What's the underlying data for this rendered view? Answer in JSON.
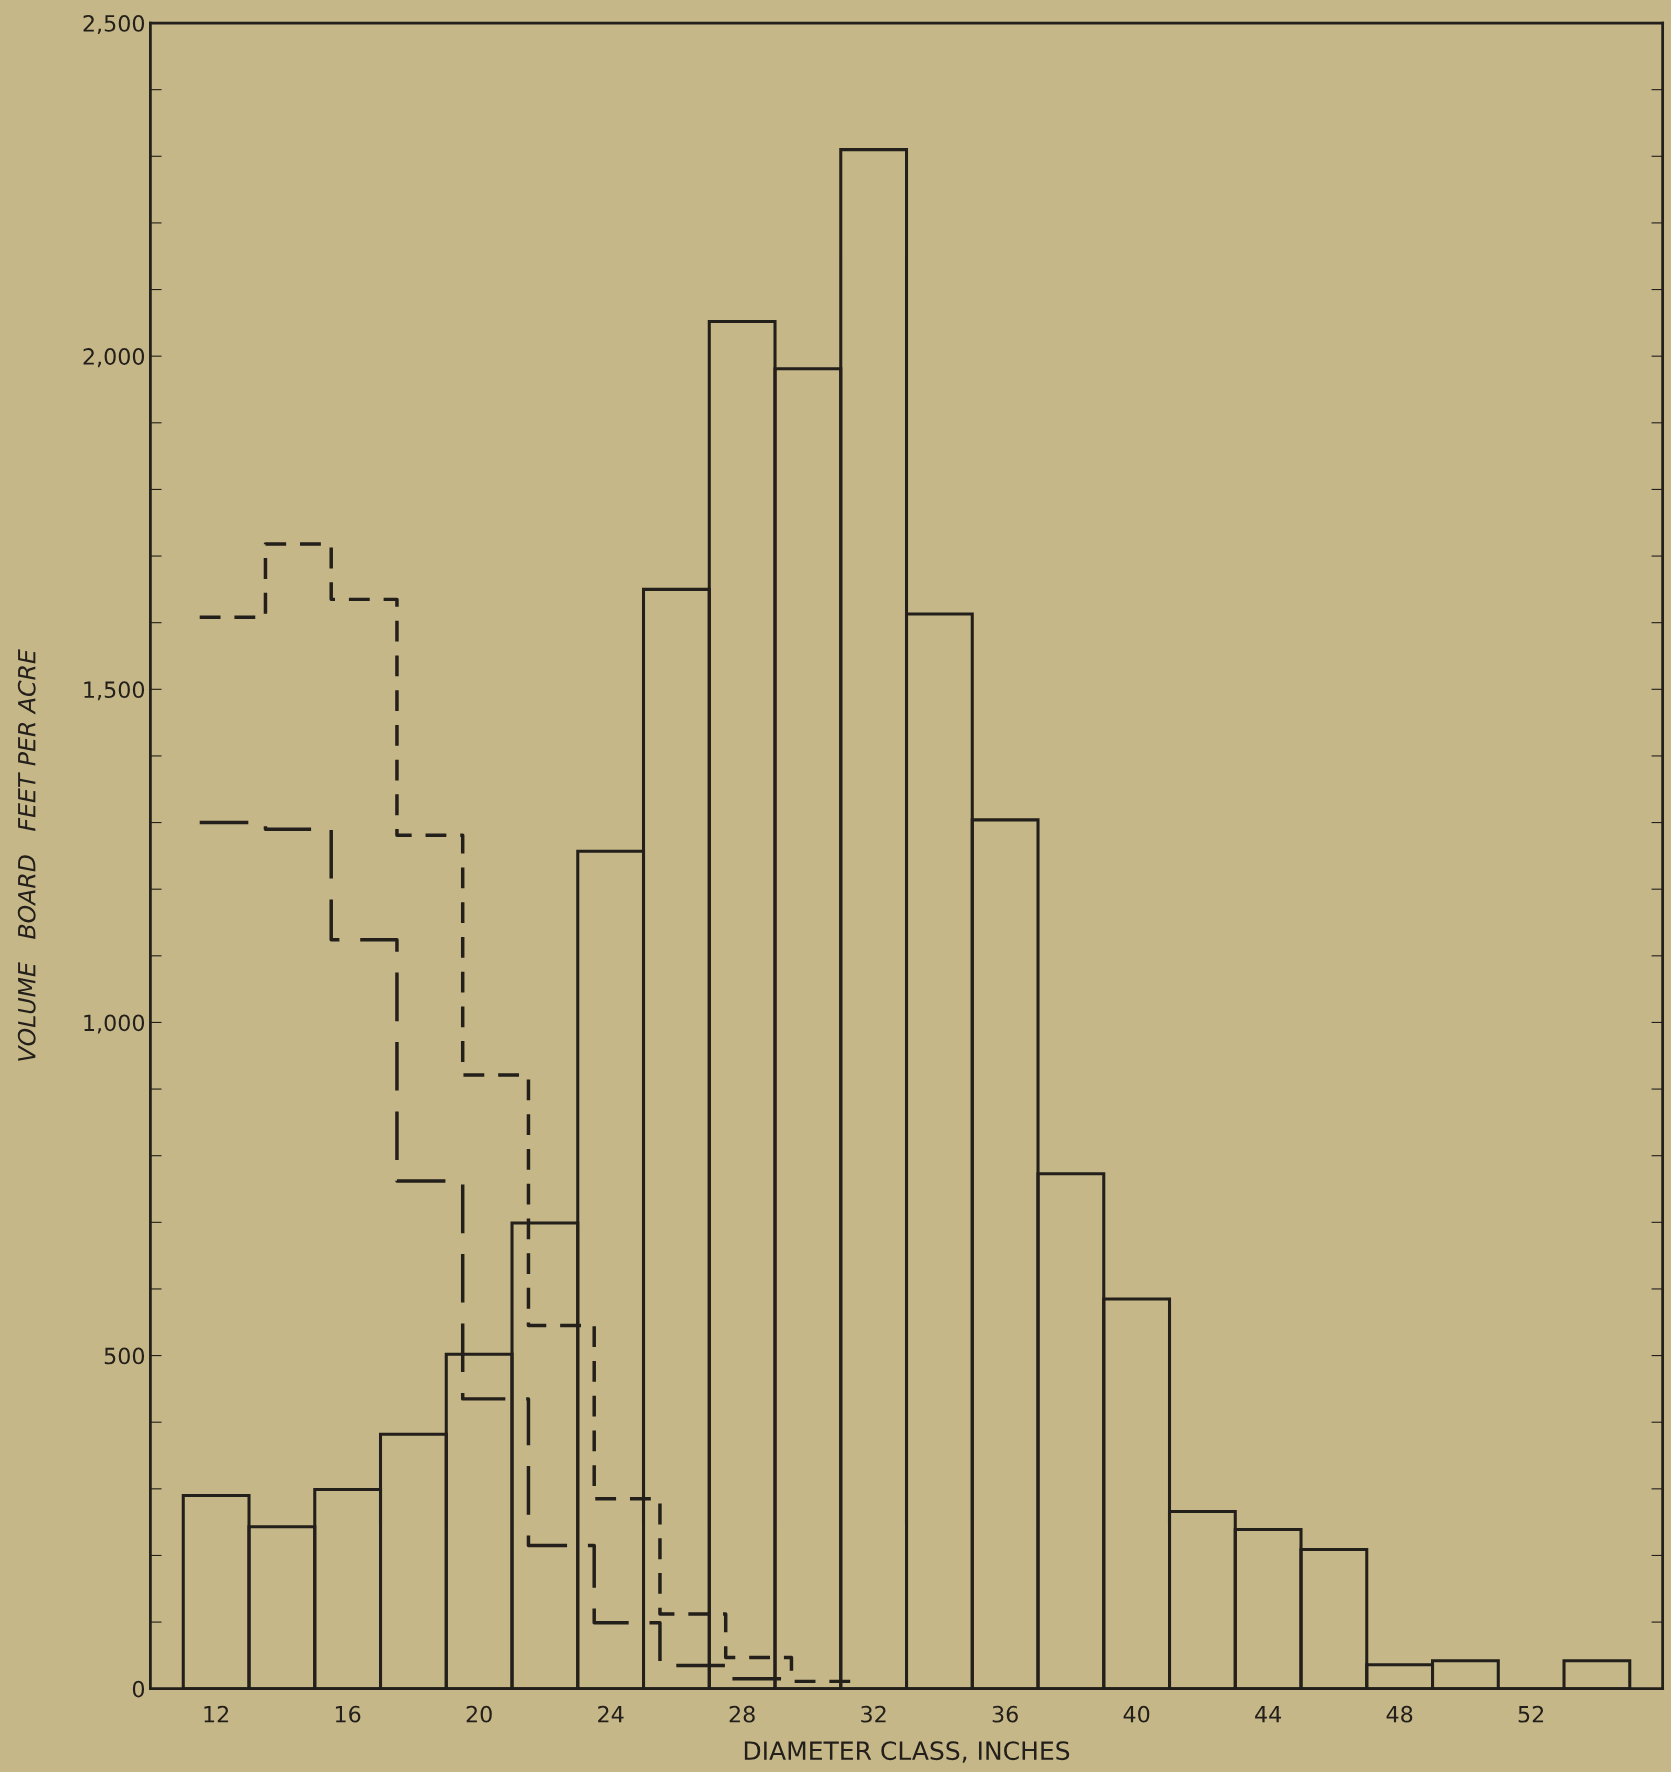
{
  "chart_data": {
    "type": "histogram",
    "xlabel": "DIAMETER CLASS, INCHES",
    "ylabel": "VOLUME   BOARD   FEET PER ACRE",
    "bins": [
      11,
      13,
      15,
      17,
      19,
      21,
      23,
      25,
      27,
      29,
      31,
      33,
      35,
      37,
      39,
      41,
      43,
      45,
      47,
      49,
      51,
      53,
      55
    ],
    "series": [
      {
        "color": "#231f1a",
        "line_style": "solid",
        "values": [
          290,
          243,
          299,
          382,
          502,
          699,
          1257,
          1650,
          2052,
          1981,
          2310,
          1613,
          1304,
          773,
          585,
          266,
          239,
          209,
          36,
          42,
          0,
          42
        ]
      },
      {
        "type": "step",
        "color": "#231f1a",
        "line_style": "dashed",
        "x": [
          11.5,
          13.5,
          15.5,
          17.5,
          19.5,
          21.5,
          23.5,
          25.5,
          27.5,
          29.5,
          31.5
        ],
        "values": [
          1608,
          1718,
          1635,
          1281,
          921,
          545,
          285,
          112,
          47,
          11,
          11
        ]
      },
      {
        "type": "step",
        "color": "#231f1a",
        "line_style": "dashed",
        "x": [
          11.5,
          13.5,
          15.5,
          17.5,
          19.5,
          21.5,
          23.5,
          25.5,
          27.5,
          29.5
        ],
        "values": [
          1300,
          1290,
          1124,
          762,
          435,
          215,
          99,
          35,
          15,
          15
        ]
      }
    ],
    "xlim": [
      10,
      56
    ],
    "xticks": [
      12,
      16,
      20,
      24,
      28,
      32,
      36,
      40,
      44,
      48,
      52
    ],
    "ylim": [
      0,
      2500
    ],
    "yticks": [
      {
        "value": 0,
        "label": "0"
      },
      {
        "value": 100,
        "label": null
      },
      {
        "value": 200,
        "label": null
      },
      {
        "value": 300,
        "label": null
      },
      {
        "value": 400,
        "label": null
      },
      {
        "value": 500,
        "label": "500"
      },
      {
        "value": 600,
        "label": null
      },
      {
        "value": 700,
        "label": null
      },
      {
        "value": 800,
        "label": null
      },
      {
        "value": 900,
        "label": null
      },
      {
        "value": 1000,
        "label": "1,000"
      },
      {
        "value": 1100,
        "label": null
      },
      {
        "value": 1200,
        "label": null
      },
      {
        "value": 1300,
        "label": null
      },
      {
        "value": 1400,
        "label": null
      },
      {
        "value": 1500,
        "label": "1,500"
      },
      {
        "value": 1600,
        "label": null
      },
      {
        "value": 1700,
        "label": null
      },
      {
        "value": 1800,
        "label": null
      },
      {
        "value": 1900,
        "label": null
      },
      {
        "value": 2000,
        "label": "2,000"
      },
      {
        "value": 2100,
        "label": null
      },
      {
        "value": 2200,
        "label": null
      },
      {
        "value": 2300,
        "label": null
      },
      {
        "value": 2400,
        "label": null
      },
      {
        "value": 2500,
        "label": "2,500"
      }
    ],
    "grid": false,
    "legend": false
  }
}
